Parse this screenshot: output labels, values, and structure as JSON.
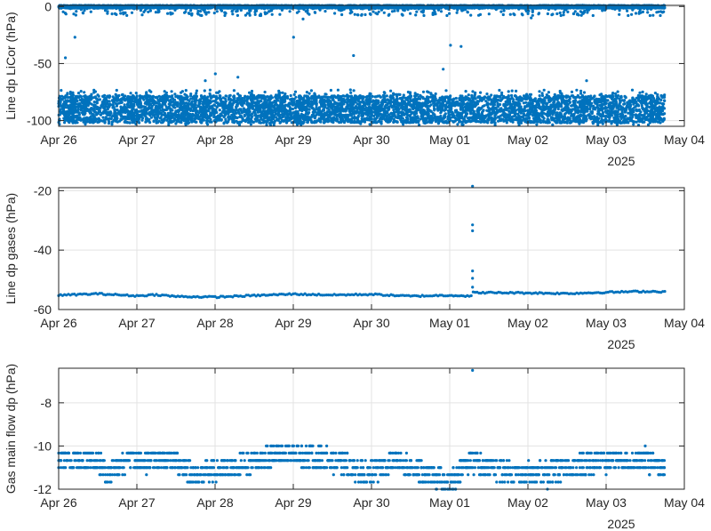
{
  "figure": {
    "marker_color": "#0072BD",
    "grid_color": "#E3E3E3",
    "axis_color": "#262626"
  },
  "chart_data": [
    {
      "type": "scatter",
      "ylabel": "Line dp LiCor (hPa)",
      "xlabel": "",
      "year_label": "2025",
      "x_tick_labels": [
        "Apr 26",
        "Apr 27",
        "Apr 28",
        "Apr 29",
        "Apr 30",
        "May 01",
        "May 02",
        "May 03",
        "May 04"
      ],
      "x_tick_values": [
        "2025-04-26",
        "2025-04-27",
        "2025-04-28",
        "2025-04-29",
        "2025-04-30",
        "2025-05-01",
        "2025-05-02",
        "2025-05-03",
        "2025-05-04"
      ],
      "xlim": [
        "2025-04-26T00:00",
        "2025-05-04T00:00"
      ],
      "ylim": [
        -105,
        1
      ],
      "y_ticks": [
        0,
        -50,
        -100
      ],
      "y_tick_labels": [
        "0",
        "-50",
        "-100"
      ],
      "grid": true,
      "series": [
        {
          "bands": [
            {
              "x_start": "2025-04-26T00:00",
              "x_end": "2025-05-03T18:00",
              "y_min": -1.5,
              "y_max": 1.0,
              "density": 1.0
            },
            {
              "x_start": "2025-04-26T00:00",
              "x_end": "2025-05-03T18:00",
              "y_min": -102,
              "y_max": -78,
              "density": 1.0
            },
            {
              "x_start": "2025-04-26T00:00",
              "x_end": "2025-05-03T18:00",
              "y_min": -104,
              "y_max": -73,
              "density": 0.18
            },
            {
              "x_start": "2025-04-26T00:00",
              "x_end": "2025-05-03T18:00",
              "y_min": -8,
              "y_max": -1.5,
              "density": 0.06
            }
          ],
          "points": [
            [
              "2025-04-26T02:05",
              -45
            ],
            [
              "2025-04-26T05:00",
              -27
            ],
            [
              "2025-04-27T06:30",
              -5
            ],
            [
              "2025-04-28T03:00",
              -8
            ],
            [
              "2025-04-28T00:05",
              -59
            ],
            [
              "2025-04-28T07:00",
              -62
            ],
            [
              "2025-04-27T21:00",
              -65
            ],
            [
              "2025-04-29T00:05",
              -27
            ],
            [
              "2025-04-29T03:00",
              -11
            ],
            [
              "2025-04-29T14:00",
              -3
            ],
            [
              "2025-04-29T18:30",
              -43
            ],
            [
              "2025-05-01T00:15",
              -34
            ],
            [
              "2025-05-01T03:30",
              -35
            ],
            [
              "2025-04-30T22:00",
              -55
            ],
            [
              "2025-05-02T01:00",
              -10
            ],
            [
              "2025-05-02T11:00",
              -5
            ],
            [
              "2025-05-02T18:00",
              -65
            ],
            [
              "2025-05-02T20:00",
              -8
            ],
            [
              "2025-05-03T04:00",
              -7
            ]
          ]
        }
      ]
    },
    {
      "type": "scatter",
      "ylabel": "Line dp gases (hPa)",
      "xlabel": "",
      "year_label": "2025",
      "x_tick_labels": [
        "Apr 26",
        "Apr 27",
        "Apr 28",
        "Apr 29",
        "Apr 30",
        "May 01",
        "May 02",
        "May 03",
        "May 04"
      ],
      "x_tick_values": [
        "2025-04-26",
        "2025-04-27",
        "2025-04-28",
        "2025-04-29",
        "2025-04-30",
        "2025-05-01",
        "2025-05-02",
        "2025-05-03",
        "2025-05-04"
      ],
      "xlim": [
        "2025-04-26T00:00",
        "2025-05-04T00:00"
      ],
      "ylim": [
        -60,
        -19
      ],
      "y_ticks": [
        -20,
        -40,
        -60
      ],
      "y_tick_labels": [
        "-20",
        "-40",
        "-60"
      ],
      "grid": true,
      "series": [
        {
          "trend": [
            [
              "2025-04-26T00:00",
              -55.2
            ],
            [
              "2025-04-26T12:00",
              -54.7
            ],
            [
              "2025-04-27T00:00",
              -55.4
            ],
            [
              "2025-04-27T06:00",
              -55.0
            ],
            [
              "2025-04-27T12:00",
              -55.6
            ],
            [
              "2025-04-28T00:00",
              -55.8
            ],
            [
              "2025-04-28T12:00",
              -55.3
            ],
            [
              "2025-04-29T00:00",
              -54.8
            ],
            [
              "2025-04-29T12:00",
              -55.1
            ],
            [
              "2025-04-30T00:00",
              -54.9
            ],
            [
              "2025-04-30T12:00",
              -55.5
            ],
            [
              "2025-05-01T00:00",
              -55.2
            ],
            [
              "2025-05-01T06:50",
              -55.5
            ],
            [
              "2025-05-01T07:05",
              -54.3
            ],
            [
              "2025-05-02T00:00",
              -54.4
            ],
            [
              "2025-05-02T12:00",
              -54.6
            ],
            [
              "2025-05-03T00:00",
              -54.2
            ],
            [
              "2025-05-03T12:00",
              -53.9
            ],
            [
              "2025-05-03T18:00",
              -54.0
            ]
          ],
          "points": [
            [
              "2025-05-01T07:00",
              -18.5
            ],
            [
              "2025-05-01T07:00",
              -31.5
            ],
            [
              "2025-05-01T07:00",
              -33.5
            ],
            [
              "2025-05-01T07:00",
              -47
            ],
            [
              "2025-05-01T07:00",
              -49.5
            ],
            [
              "2025-05-01T07:00",
              -52.5
            ]
          ]
        }
      ]
    },
    {
      "type": "scatter",
      "ylabel": "Gas main flow dp (hPa)",
      "xlabel": "",
      "year_label": "2025",
      "x_tick_labels": [
        "Apr 26",
        "Apr 27",
        "Apr 28",
        "Apr 29",
        "Apr 30",
        "May 01",
        "May 02",
        "May 03",
        "May 04"
      ],
      "x_tick_values": [
        "2025-04-26",
        "2025-04-27",
        "2025-04-28",
        "2025-04-29",
        "2025-04-30",
        "2025-05-01",
        "2025-05-02",
        "2025-05-03",
        "2025-05-04"
      ],
      "xlim": [
        "2025-04-26T00:00",
        "2025-05-04T00:00"
      ],
      "ylim": [
        -12,
        -6.4
      ],
      "y_ticks": [
        -8,
        -10,
        -12
      ],
      "y_tick_labels": [
        "-8",
        "-10",
        "-12"
      ],
      "grid": true,
      "series": [
        {
          "levels": [
            -10.0,
            -10.33,
            -10.67,
            -11.0,
            -11.33,
            -11.67,
            -12.0
          ],
          "baseline": [
            [
              "2025-04-26T00:00",
              -10.67
            ],
            [
              "2025-04-26T12:00",
              -10.67
            ],
            [
              "2025-04-26T15:00",
              -11.33
            ],
            [
              "2025-04-26T21:00",
              -10.67
            ],
            [
              "2025-04-27T12:00",
              -10.67
            ],
            [
              "2025-04-27T18:00",
              -11.33
            ],
            [
              "2025-04-28T06:00",
              -11.0
            ],
            [
              "2025-04-28T12:00",
              -10.67
            ],
            [
              "2025-04-29T00:00",
              -10.33
            ],
            [
              "2025-04-29T12:00",
              -10.67
            ],
            [
              "2025-04-29T18:00",
              -11.0
            ],
            [
              "2025-04-30T00:00",
              -11.33
            ],
            [
              "2025-04-30T06:00",
              -10.67
            ],
            [
              "2025-04-30T12:00",
              -11.0
            ],
            [
              "2025-05-01T00:00",
              -11.67
            ],
            [
              "2025-05-01T06:00",
              -10.67
            ],
            [
              "2025-05-01T12:00",
              -11.0
            ],
            [
              "2025-05-02T00:00",
              -11.33
            ],
            [
              "2025-05-02T12:00",
              -11.0
            ],
            [
              "2025-05-03T00:00",
              -10.67
            ],
            [
              "2025-05-03T12:00",
              -10.67
            ],
            [
              "2025-05-03T18:00",
              -11.0
            ]
          ],
          "points": [
            [
              "2025-05-01T07:00",
              -6.5
            ],
            [
              "2025-04-28T18:00",
              -10.0
            ],
            [
              "2025-04-29T06:00",
              -10.0
            ],
            [
              "2025-05-03T12:00",
              -10.0
            ],
            [
              "2025-04-27T20:00",
              -11.67
            ],
            [
              "2025-05-02T04:00",
              -11.67
            ],
            [
              "2025-05-02T10:00",
              -11.67
            ],
            [
              "2025-04-30T20:00",
              -12.0
            ],
            [
              "2025-05-02T06:00",
              -12.0
            ]
          ]
        }
      ]
    }
  ]
}
